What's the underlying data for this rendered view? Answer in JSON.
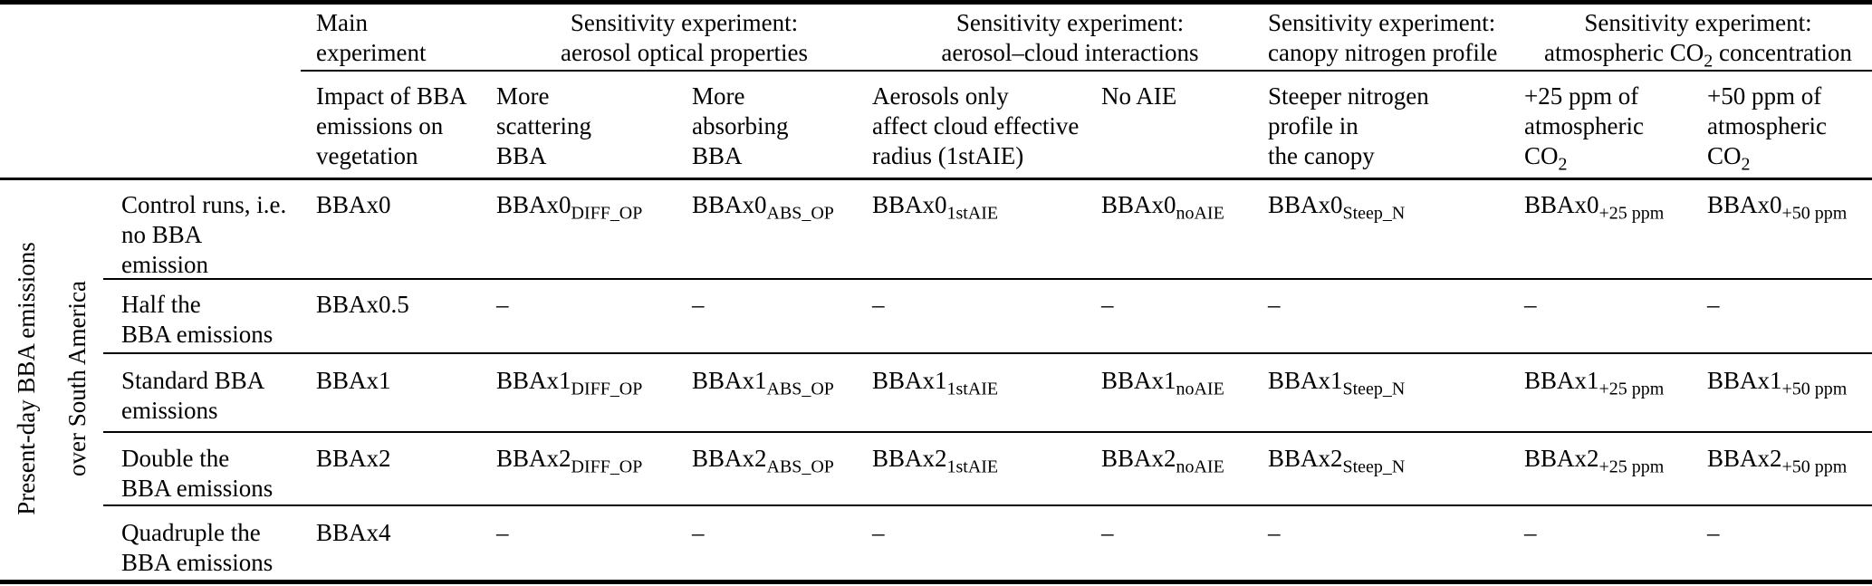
{
  "colors": {
    "text": "#000000",
    "background": "#ffffff",
    "rule": "#000000"
  },
  "side_label": {
    "line1": "Present-day BBA emissions",
    "line2": "over South America"
  },
  "header_groups": [
    {
      "name": "main-experiment",
      "align": "left",
      "cols": [
        0
      ],
      "lines": [
        "Main",
        "experiment"
      ]
    },
    {
      "name": "aerosol-optical-properties",
      "align": "center",
      "cols": [
        1,
        2
      ],
      "lines": [
        "Sensitivity experiment:",
        "aerosol optical properties"
      ]
    },
    {
      "name": "aerosol-cloud-interactions",
      "align": "center",
      "cols": [
        3,
        4
      ],
      "lines": [
        "Sensitivity experiment:",
        "aerosol–cloud interactions"
      ]
    },
    {
      "name": "canopy-nitrogen-profile",
      "align": "left",
      "cols": [
        5
      ],
      "lines": [
        "Sensitivity experiment:",
        "canopy nitrogen profile"
      ]
    },
    {
      "name": "atmospheric-co2-concentration",
      "align": "center",
      "cols": [
        6,
        7
      ],
      "lines": [
        "Sensitivity experiment:",
        {
          "pre": "atmospheric CO",
          "sub": "2",
          "post": " concentration"
        }
      ]
    }
  ],
  "column_headers": [
    {
      "lines": [
        "Impact of BBA",
        "emissions on",
        "vegetation"
      ]
    },
    {
      "lines": [
        "More",
        "scattering",
        "BBA"
      ]
    },
    {
      "lines": [
        "More",
        "absorbing",
        "BBA"
      ]
    },
    {
      "lines": [
        "Aerosols only",
        "affect cloud effective",
        "radius (1stAIE)"
      ]
    },
    {
      "lines": [
        "No AIE"
      ]
    },
    {
      "lines": [
        "Steeper nitrogen",
        "profile in",
        "the canopy"
      ]
    },
    {
      "lines": [
        "+25 ppm of",
        "atmospheric",
        {
          "pre": "CO",
          "sub": "2"
        }
      ]
    },
    {
      "lines": [
        "+50 ppm of",
        "atmospheric",
        {
          "pre": "CO",
          "sub": "2"
        }
      ]
    }
  ],
  "rows": [
    {
      "label_lines": [
        "Control runs, i.e.",
        "no BBA",
        "emission"
      ],
      "cells": [
        {
          "pre": "BBAx0"
        },
        {
          "pre": "BBAx0",
          "sub": "DIFF_OP"
        },
        {
          "pre": "BBAx0",
          "sub": "ABS_OP"
        },
        {
          "pre": "BBAx0",
          "sub": "1stAIE"
        },
        {
          "pre": "BBAx0",
          "sub": "noAIE"
        },
        {
          "pre": "BBAx0",
          "sub": "Steep_N"
        },
        {
          "pre": "BBAx0",
          "sub": "+25 ppm"
        },
        {
          "pre": "BBAx0",
          "sub": "+50 ppm"
        }
      ]
    },
    {
      "label_lines": [
        "Half the",
        "BBA emissions"
      ],
      "cells": [
        {
          "pre": "BBAx0.5"
        },
        {
          "pre": "–"
        },
        {
          "pre": "–"
        },
        {
          "pre": "–"
        },
        {
          "pre": "–"
        },
        {
          "pre": "–"
        },
        {
          "pre": "–"
        },
        {
          "pre": "–"
        }
      ]
    },
    {
      "label_lines": [
        "Standard BBA",
        "emissions"
      ],
      "cells": [
        {
          "pre": "BBAx1"
        },
        {
          "pre": "BBAx1",
          "sub": "DIFF_OP"
        },
        {
          "pre": "BBAx1",
          "sub": "ABS_OP"
        },
        {
          "pre": "BBAx1",
          "sub": "1stAIE"
        },
        {
          "pre": "BBAx1",
          "sub": "noAIE"
        },
        {
          "pre": "BBAx1",
          "sub": "Steep_N"
        },
        {
          "pre": "BBAx1",
          "sub": "+25 ppm"
        },
        {
          "pre": "BBAx1",
          "sub": "+50 ppm"
        }
      ]
    },
    {
      "label_lines": [
        "Double the",
        "BBA emissions"
      ],
      "cells": [
        {
          "pre": "BBAx2"
        },
        {
          "pre": "BBAx2",
          "sub": "DIFF_OP"
        },
        {
          "pre": "BBAx2",
          "sub": "ABS_OP"
        },
        {
          "pre": "BBAx2",
          "sub": "1stAIE"
        },
        {
          "pre": "BBAx2",
          "sub": "noAIE"
        },
        {
          "pre": "BBAx2",
          "sub": "Steep_N"
        },
        {
          "pre": "BBAx2",
          "sub": "+25 ppm"
        },
        {
          "pre": "BBAx2",
          "sub": "+50 ppm"
        }
      ]
    },
    {
      "label_lines": [
        "Quadruple the",
        "BBA emissions"
      ],
      "cells": [
        {
          "pre": "BBAx4"
        },
        {
          "pre": "–"
        },
        {
          "pre": "–"
        },
        {
          "pre": "–"
        },
        {
          "pre": "–"
        },
        {
          "pre": "–"
        },
        {
          "pre": "–"
        },
        {
          "pre": "–"
        }
      ]
    }
  ]
}
